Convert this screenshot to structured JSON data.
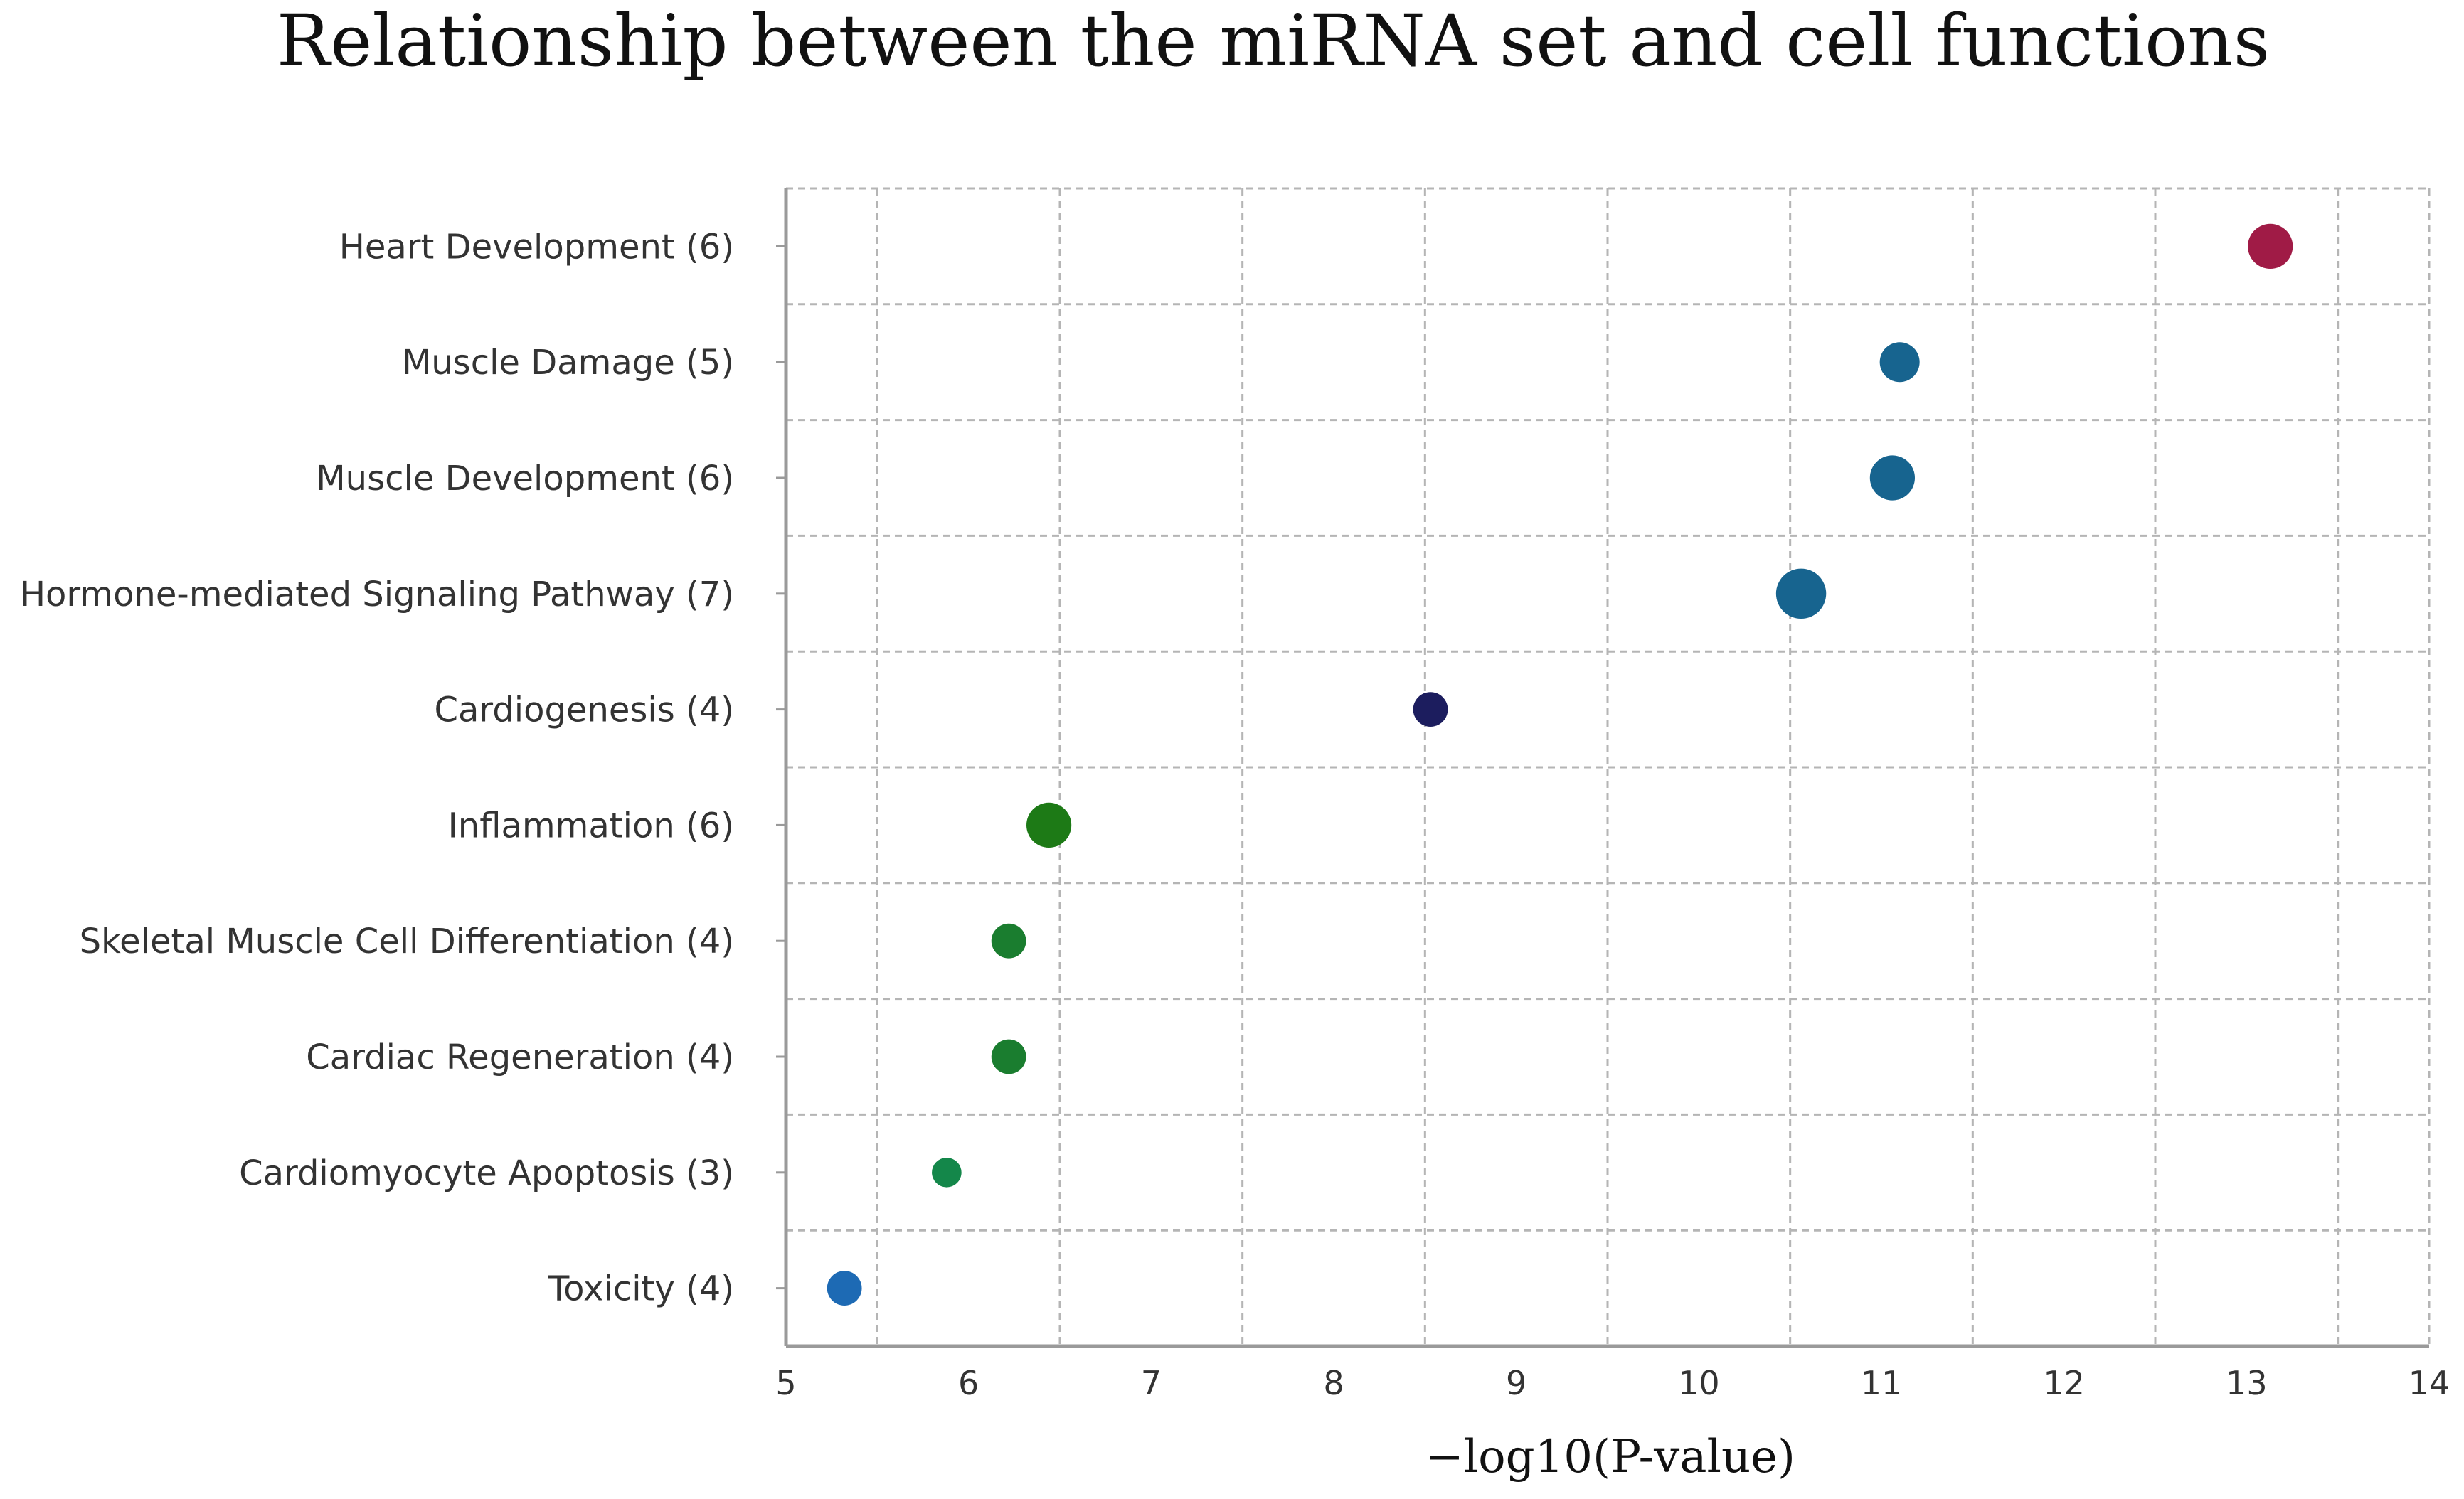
{
  "chart_data": {
    "type": "scatter",
    "title": "Relationship between the miRNA set and cell functions",
    "xlabel": "−log10(P-value)",
    "ylabel": "",
    "xlim": [
      5,
      14
    ],
    "xticks": [
      "5",
      "6",
      "7",
      "8",
      "9",
      "10",
      "11",
      "12",
      "13",
      "14"
    ],
    "grid": true,
    "categories": [
      "Heart Development (6)",
      "Muscle Damage (5)",
      "Muscle Development (6)",
      "Hormone-mediated Signaling Pathway  (7)",
      "Cardiogenesis (4)",
      "Inflammation (6)",
      "Skeletal Muscle Cell Differentiation (4)",
      "Cardiac Regeneration (4)",
      "Cardiomyocyte Apoptosis (3)",
      "Toxicity (4)"
    ],
    "points": [
      {
        "label": "Heart Development (6)",
        "x": 13.13,
        "count": 6,
        "color": "#a01b46"
      },
      {
        "label": "Muscle Damage (5)",
        "x": 11.1,
        "count": 5,
        "color": "#17648f"
      },
      {
        "label": "Muscle Development (6)",
        "x": 11.06,
        "count": 6,
        "color": "#17648f"
      },
      {
        "label": "Hormone-mediated Signaling Pathway  (7)",
        "x": 10.56,
        "count": 7,
        "color": "#17648f"
      },
      {
        "label": "Cardiogenesis (4)",
        "x": 8.53,
        "count": 4,
        "color": "#1c1d5e"
      },
      {
        "label": "Inflammation (6)",
        "x": 6.44,
        "count": 6,
        "color": "#1d7a16"
      },
      {
        "label": "Skeletal Muscle Cell Differentiation (4)",
        "x": 6.22,
        "count": 4,
        "color": "#1a7d2f"
      },
      {
        "label": "Cardiac Regeneration (4)",
        "x": 6.22,
        "count": 4,
        "color": "#1a7d2f"
      },
      {
        "label": "Cardiomyocyte Apoptosis (3)",
        "x": 5.88,
        "count": 3,
        "color": "#14874a"
      },
      {
        "label": "Toxicity (4)",
        "x": 5.32,
        "count": 4,
        "color": "#1d6ab4"
      }
    ],
    "colors": {
      "grid": "#b5b5b5",
      "axis": "#9a9a9a",
      "text": "#333333"
    }
  }
}
